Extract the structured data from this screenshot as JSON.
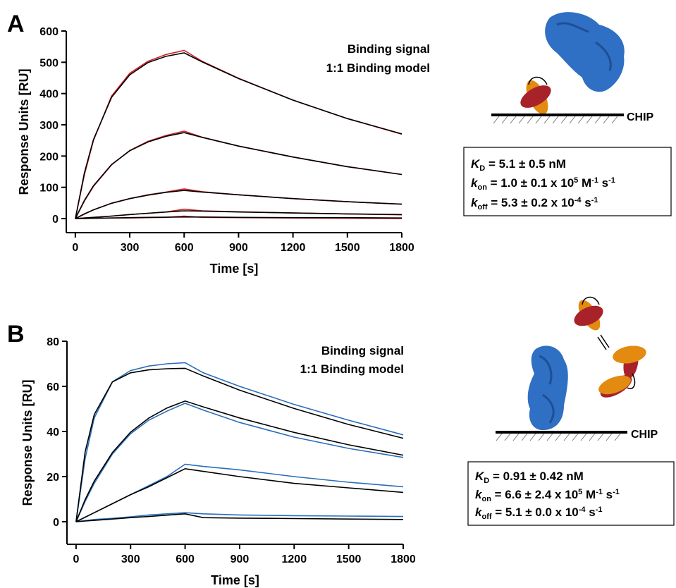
{
  "chart_data": [
    {
      "type": "line",
      "panel": "A",
      "xlabel": "Time [s]",
      "ylabel": "Response Units [RU]",
      "x": [
        0,
        50,
        100,
        200,
        300,
        400,
        500,
        600,
        700,
        900,
        1200,
        1500,
        1800
      ],
      "xlim": [
        -50,
        1800
      ],
      "ylim": [
        -45,
        600
      ],
      "xticks": [
        0,
        300,
        600,
        900,
        1200,
        1500,
        1800
      ],
      "yticks": [
        0,
        100,
        200,
        300,
        400,
        500,
        600
      ],
      "series": [
        {
          "name": "Binding signal",
          "color": "#d42027",
          "values": [
            0,
            140,
            250,
            392,
            465,
            503,
            525,
            538,
            503,
            449,
            379,
            320,
            270
          ]
        },
        {
          "name": "Binding signal",
          "color": "#d42027",
          "values": [
            0,
            56,
            103,
            172,
            218,
            247,
            266,
            280,
            260,
            232,
            197,
            166,
            141
          ]
        },
        {
          "name": "Binding signal",
          "color": "#d42027",
          "values": [
            0,
            14,
            28,
            49,
            64,
            76,
            85,
            95,
            86,
            76,
            64,
            54,
            46
          ]
        },
        {
          "name": "Binding signal",
          "color": "#d42027",
          "values": [
            0,
            2,
            4,
            8,
            13,
            17,
            21,
            30,
            25,
            22,
            18,
            15,
            12
          ]
        },
        {
          "name": "Binding signal",
          "color": "#d42027",
          "values": [
            0,
            0,
            1,
            2,
            2,
            3,
            4,
            8,
            4,
            3,
            2,
            1,
            0
          ]
        },
        {
          "name": "1:1 Binding model",
          "color": "#000000",
          "values": [
            0,
            146,
            253,
            388,
            460,
            499,
            519,
            530,
            501,
            448,
            379,
            320,
            271
          ]
        },
        {
          "name": "1:1 Binding model",
          "color": "#000000",
          "values": [
            0,
            58,
            105,
            173,
            217,
            245,
            263,
            275,
            260,
            232,
            197,
            166,
            141
          ]
        },
        {
          "name": "1:1 Binding model",
          "color": "#000000",
          "values": [
            0,
            15,
            28,
            49,
            64,
            75,
            84,
            90,
            85,
            76,
            64,
            54,
            46
          ]
        },
        {
          "name": "1:1 Binding model",
          "color": "#000000",
          "values": [
            0,
            2,
            4,
            8,
            13,
            17,
            21,
            25,
            24,
            21,
            18,
            15,
            13
          ]
        },
        {
          "name": "1:1 Binding model",
          "color": "#000000",
          "values": [
            0,
            0.5,
            1,
            2,
            3,
            4,
            4.5,
            5,
            5,
            4,
            3,
            3,
            2
          ]
        }
      ],
      "surface_label": "CHIP",
      "kinetics": [
        [
          {
            "text": "K",
            "style": "italic"
          },
          {
            "text": "D",
            "style": "sub"
          },
          {
            "text": " = 5.1 ± 0.5 nM"
          }
        ],
        [
          {
            "text": "k",
            "style": "italic"
          },
          {
            "text": "on",
            "style": "sub"
          },
          {
            "text": " = 1.0 ± 0.1 x 10"
          },
          {
            "text": "5",
            "style": "sup"
          },
          {
            "text": " M"
          },
          {
            "text": "-1",
            "style": "sup"
          },
          {
            "text": " s"
          },
          {
            "text": "-1",
            "style": "sup"
          }
        ],
        [
          {
            "text": "k",
            "style": "italic"
          },
          {
            "text": "off",
            "style": "sub"
          },
          {
            "text": " = 5.3 ± 0.2 x 10"
          },
          {
            "text": "-4",
            "style": "sup"
          },
          {
            "text": " s"
          },
          {
            "text": "-1",
            "style": "sup"
          }
        ]
      ]
    },
    {
      "type": "line",
      "panel": "B",
      "xlabel": "Time [s]",
      "ylabel": "Response Units [RU]",
      "x": [
        0,
        50,
        100,
        200,
        300,
        400,
        500,
        600,
        700,
        900,
        1200,
        1500,
        1800
      ],
      "xlim": [
        -50,
        1800
      ],
      "ylim": [
        -10,
        80
      ],
      "xticks": [
        0,
        300,
        600,
        900,
        1200,
        1500,
        1800
      ],
      "yticks": [
        0,
        20,
        40,
        60,
        80
      ],
      "series": [
        {
          "name": "Binding signal",
          "color": "#2a6ebb",
          "values": [
            0,
            28,
            46,
            62,
            67,
            69,
            70,
            70.5,
            66,
            60,
            52,
            45,
            38.5
          ]
        },
        {
          "name": "Binding signal",
          "color": "#2a6ebb",
          "values": [
            0,
            9,
            17,
            30,
            39,
            45,
            49,
            52.5,
            49.5,
            44,
            37.5,
            32.5,
            28.5
          ]
        },
        {
          "name": "Binding signal",
          "color": "#2a6ebb",
          "values": [
            0,
            2,
            4,
            8,
            12,
            16,
            20,
            25.5,
            24.5,
            23,
            20,
            17.5,
            15.5
          ]
        },
        {
          "name": "Binding signal",
          "color": "#2a6ebb",
          "values": [
            0,
            0.5,
            1,
            1.5,
            2.2,
            3,
            3.5,
            4,
            3.5,
            3,
            2.7,
            2.5,
            2.3
          ]
        },
        {
          "name": "1:1 Binding model",
          "color": "#000000",
          "values": [
            0,
            31,
            47.5,
            62,
            66,
            67.3,
            67.8,
            68,
            64.6,
            58.3,
            50.2,
            43.1,
            37
          ]
        },
        {
          "name": "1:1 Binding model",
          "color": "#000000",
          "values": [
            0,
            9.8,
            18,
            30.7,
            39.7,
            45.9,
            50.4,
            53.5,
            50.9,
            46,
            39.6,
            34.1,
            29.5
          ]
        },
        {
          "name": "1:1 Binding model",
          "color": "#000000",
          "values": [
            0,
            2,
            4,
            8,
            12,
            15.5,
            19.5,
            23.5,
            22.3,
            20,
            17,
            15,
            13
          ]
        },
        {
          "name": "1:1 Binding model",
          "color": "#000000",
          "values": [
            0,
            0.3,
            0.6,
            1.2,
            1.8,
            2.3,
            2.9,
            3.5,
            1.8,
            1.6,
            1.4,
            1.2,
            1.0
          ]
        }
      ],
      "surface_label": "CHIP",
      "kinetics": [
        [
          {
            "text": "K",
            "style": "italic"
          },
          {
            "text": "D",
            "style": "sub"
          },
          {
            "text": " = 0.91 ± 0.42 nM"
          }
        ],
        [
          {
            "text": "k",
            "style": "italic"
          },
          {
            "text": "on",
            "style": "sub"
          },
          {
            "text": " = 6.6 ± 2.4 x 10"
          },
          {
            "text": "5",
            "style": "sup"
          },
          {
            "text": " M"
          },
          {
            "text": "-1",
            "style": "sup"
          },
          {
            "text": " s"
          },
          {
            "text": "-1",
            "style": "sup"
          }
        ],
        [
          {
            "text": "k",
            "style": "italic"
          },
          {
            "text": "off",
            "style": "sub"
          },
          {
            "text": " = 5.1 ± 0.0 x 10"
          },
          {
            "text": "-4",
            "style": "sup"
          },
          {
            "text": " s"
          },
          {
            "text": "-1",
            "style": "sup"
          }
        ]
      ]
    }
  ]
}
